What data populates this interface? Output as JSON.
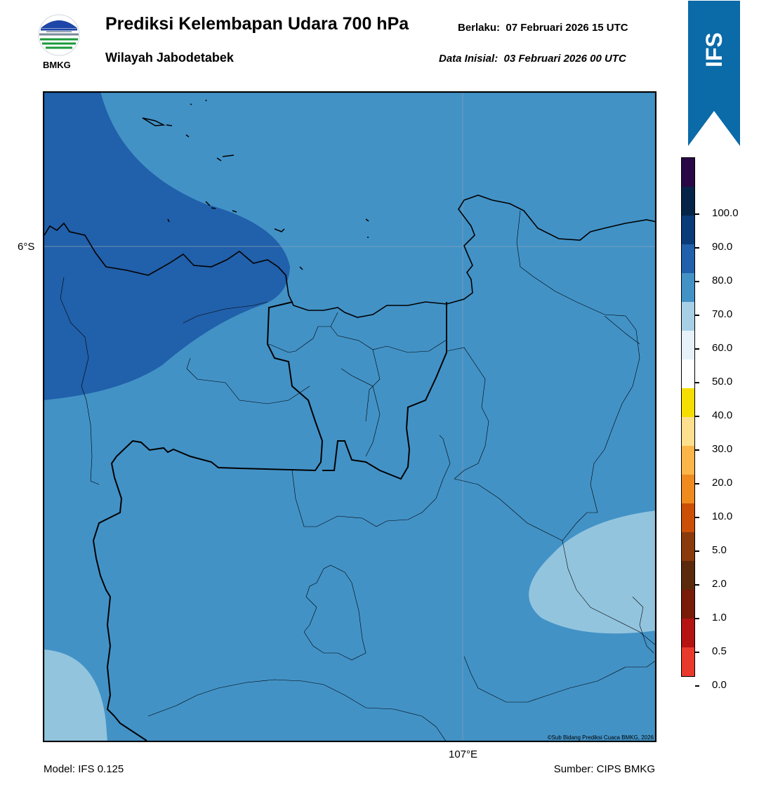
{
  "header": {
    "title": "Prediksi Kelembapan Udara 700 hPa",
    "region": "Wilayah Jabodetabek",
    "valid_label": "Berlaku:",
    "valid_time": "07 Februari 2026 15 UTC",
    "init_label": "Data Inisial:",
    "init_time": "03 Februari 2026 00 UTC"
  },
  "logo": {
    "text": "BMKG",
    "icon": "bmkg-logo-icon"
  },
  "badge": {
    "text": "IFS",
    "color": "#0b6aa8"
  },
  "map": {
    "lat_label": "6°S",
    "lon_label": "107°E",
    "credit": "©Sub Bidang Prediksi Cuaca BMKG, 2026",
    "colors": {
      "humidity_70_80": "#4292c6",
      "humidity_80_90": "#2160aa",
      "humidity_60_70": "#93c4de"
    }
  },
  "colorbar": {
    "ticks": [
      "100.0",
      "90.0",
      "80.0",
      "70.0",
      "60.0",
      "50.0",
      "40.0",
      "30.0",
      "20.0",
      "10.0",
      "5.0",
      "2.0",
      "1.0",
      "0.5",
      "0.0"
    ],
    "colors": [
      "#e8392b",
      "#b51212",
      "#7a1a08",
      "#5b2a0c",
      "#8a3a0b",
      "#cc4f08",
      "#ee8a1e",
      "#fbb548",
      "#fde08e",
      "#f5dd00",
      "#ffffff",
      "#e7f1f9",
      "#a7d0e6",
      "#4292c6",
      "#2160aa",
      "#0a3a78",
      "#052448",
      "#2a0845"
    ]
  },
  "footer": {
    "model": "Model: IFS 0.125",
    "source": "Sumber: CIPS BMKG"
  }
}
